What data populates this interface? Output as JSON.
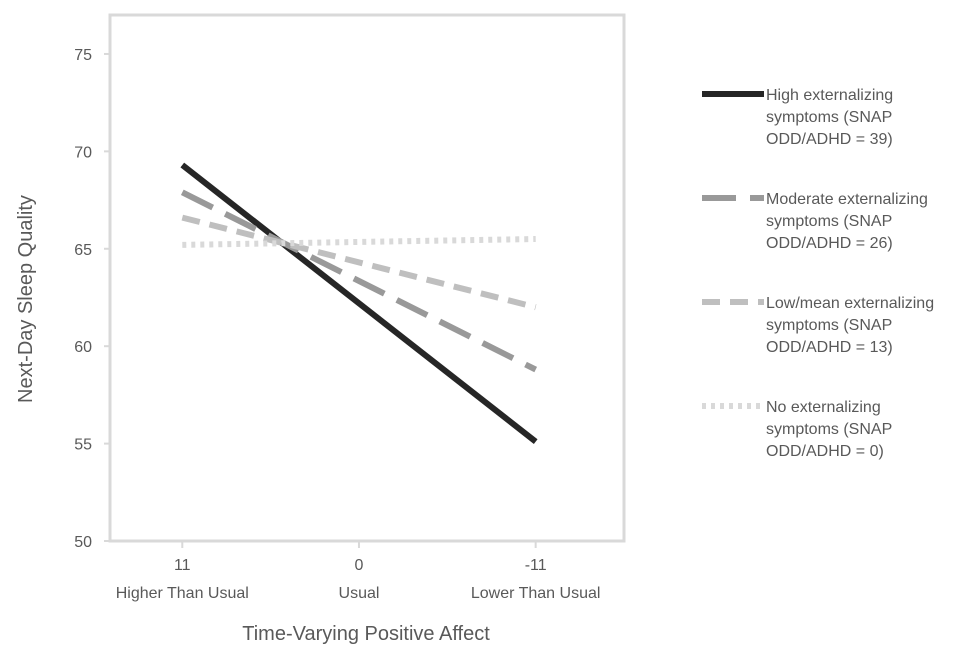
{
  "chart_data": {
    "type": "line",
    "title": "",
    "xlabel": "Time-Varying Positive Affect",
    "ylabel": "Next-Day Sleep Quality",
    "x_values": [
      11,
      0,
      -11
    ],
    "x_tick_numbers": [
      "11",
      "0",
      "-11"
    ],
    "x_tick_names": [
      "Higher Than Usual",
      "Usual",
      "Lower Than Usual"
    ],
    "xlim": [
      15.5,
      -16.5
    ],
    "ylim": [
      50,
      77
    ],
    "y_ticks": [
      50,
      55,
      60,
      65,
      70,
      75
    ],
    "y_tick_labels": [
      "50",
      "55",
      "60",
      "65",
      "70",
      "75"
    ],
    "grid": false,
    "legend_position": "right",
    "series": [
      {
        "name": "High externalizing symptoms (SNAP ODD/ADHD = 39)",
        "legend_lines": [
          "High externalizing",
          "symptoms (SNAP",
          "ODD/ADHD = 39)"
        ],
        "x": [
          11,
          -11
        ],
        "y": [
          69.3,
          55.1
        ],
        "color": "#262626",
        "style": "solid"
      },
      {
        "name": "Moderate externalizing symptoms (SNAP ODD/ADHD = 26)",
        "legend_lines": [
          "Moderate externalizing",
          "symptoms (SNAP",
          "ODD/ADHD = 26)"
        ],
        "x": [
          11,
          -11
        ],
        "y": [
          67.9,
          58.8
        ],
        "color": "#999999",
        "style": "long-dash"
      },
      {
        "name": "Low/mean externalizing symptoms (SNAP ODD/ADHD = 13)",
        "legend_lines": [
          "Low/mean externalizing",
          "symptoms (SNAP",
          "ODD/ADHD = 13)"
        ],
        "x": [
          11,
          -11
        ],
        "y": [
          66.6,
          62.0
        ],
        "color": "#bfbfbf",
        "style": "dash"
      },
      {
        "name": "No externalizing symptoms (SNAP ODD/ADHD = 0)",
        "legend_lines": [
          "No externalizing",
          "symptoms (SNAP",
          "ODD/ADHD = 0)"
        ],
        "x": [
          11,
          -11
        ],
        "y": [
          65.2,
          65.5
        ],
        "color": "#d9d9d9",
        "style": "dot"
      }
    ],
    "colors": {
      "axis": "#d9d9d9",
      "plot_border": "#d9d9d9",
      "text": "#595959"
    }
  }
}
